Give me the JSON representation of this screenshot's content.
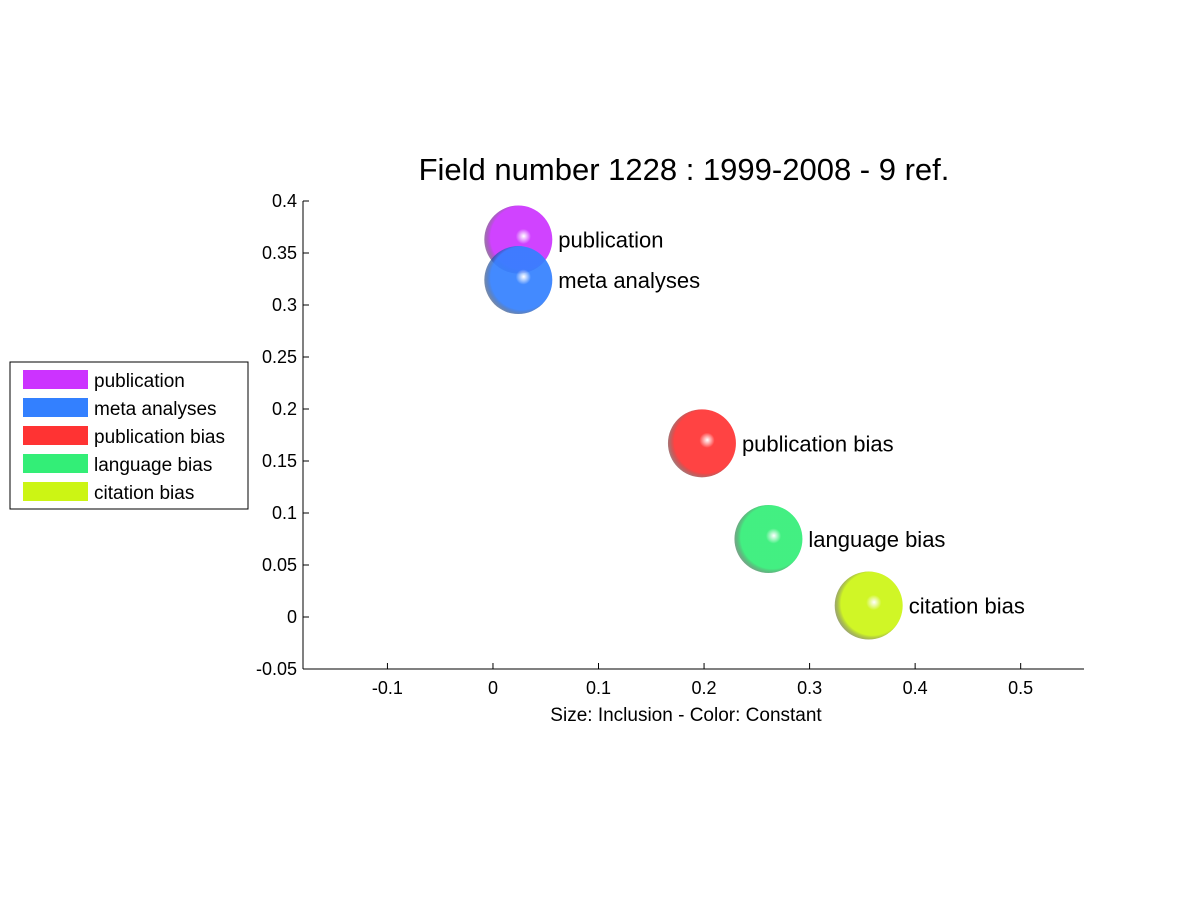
{
  "chart_data": {
    "type": "scatter",
    "title": "Field number 1228 : 1999-2008  - 9 ref.",
    "xlabel": "Size: Inclusion - Color: Constant",
    "ylabel": "",
    "xlim": [
      -0.18,
      0.56
    ],
    "ylim": [
      -0.05,
      0.4
    ],
    "xticks": [
      "-0.1",
      "0",
      "0.1",
      "0.2",
      "0.3",
      "0.4",
      "0.5"
    ],
    "yticks": [
      "-0.05",
      "0",
      "0.05",
      "0.1",
      "0.15",
      "0.2",
      "0.25",
      "0.3",
      "0.35",
      "0.4"
    ],
    "grid": false,
    "legend_position": "left",
    "points": [
      {
        "label": "publication",
        "x": 0.024,
        "y": 0.363,
        "color": "#cc33ff"
      },
      {
        "label": "meta analyses",
        "x": 0.024,
        "y": 0.324,
        "color": "#3380ff"
      },
      {
        "label": "publication bias",
        "x": 0.198,
        "y": 0.167,
        "color": "#ff3333"
      },
      {
        "label": "language bias",
        "x": 0.261,
        "y": 0.075,
        "color": "#33ee77"
      },
      {
        "label": "citation bias",
        "x": 0.356,
        "y": 0.011,
        "color": "#ccf514"
      }
    ]
  }
}
